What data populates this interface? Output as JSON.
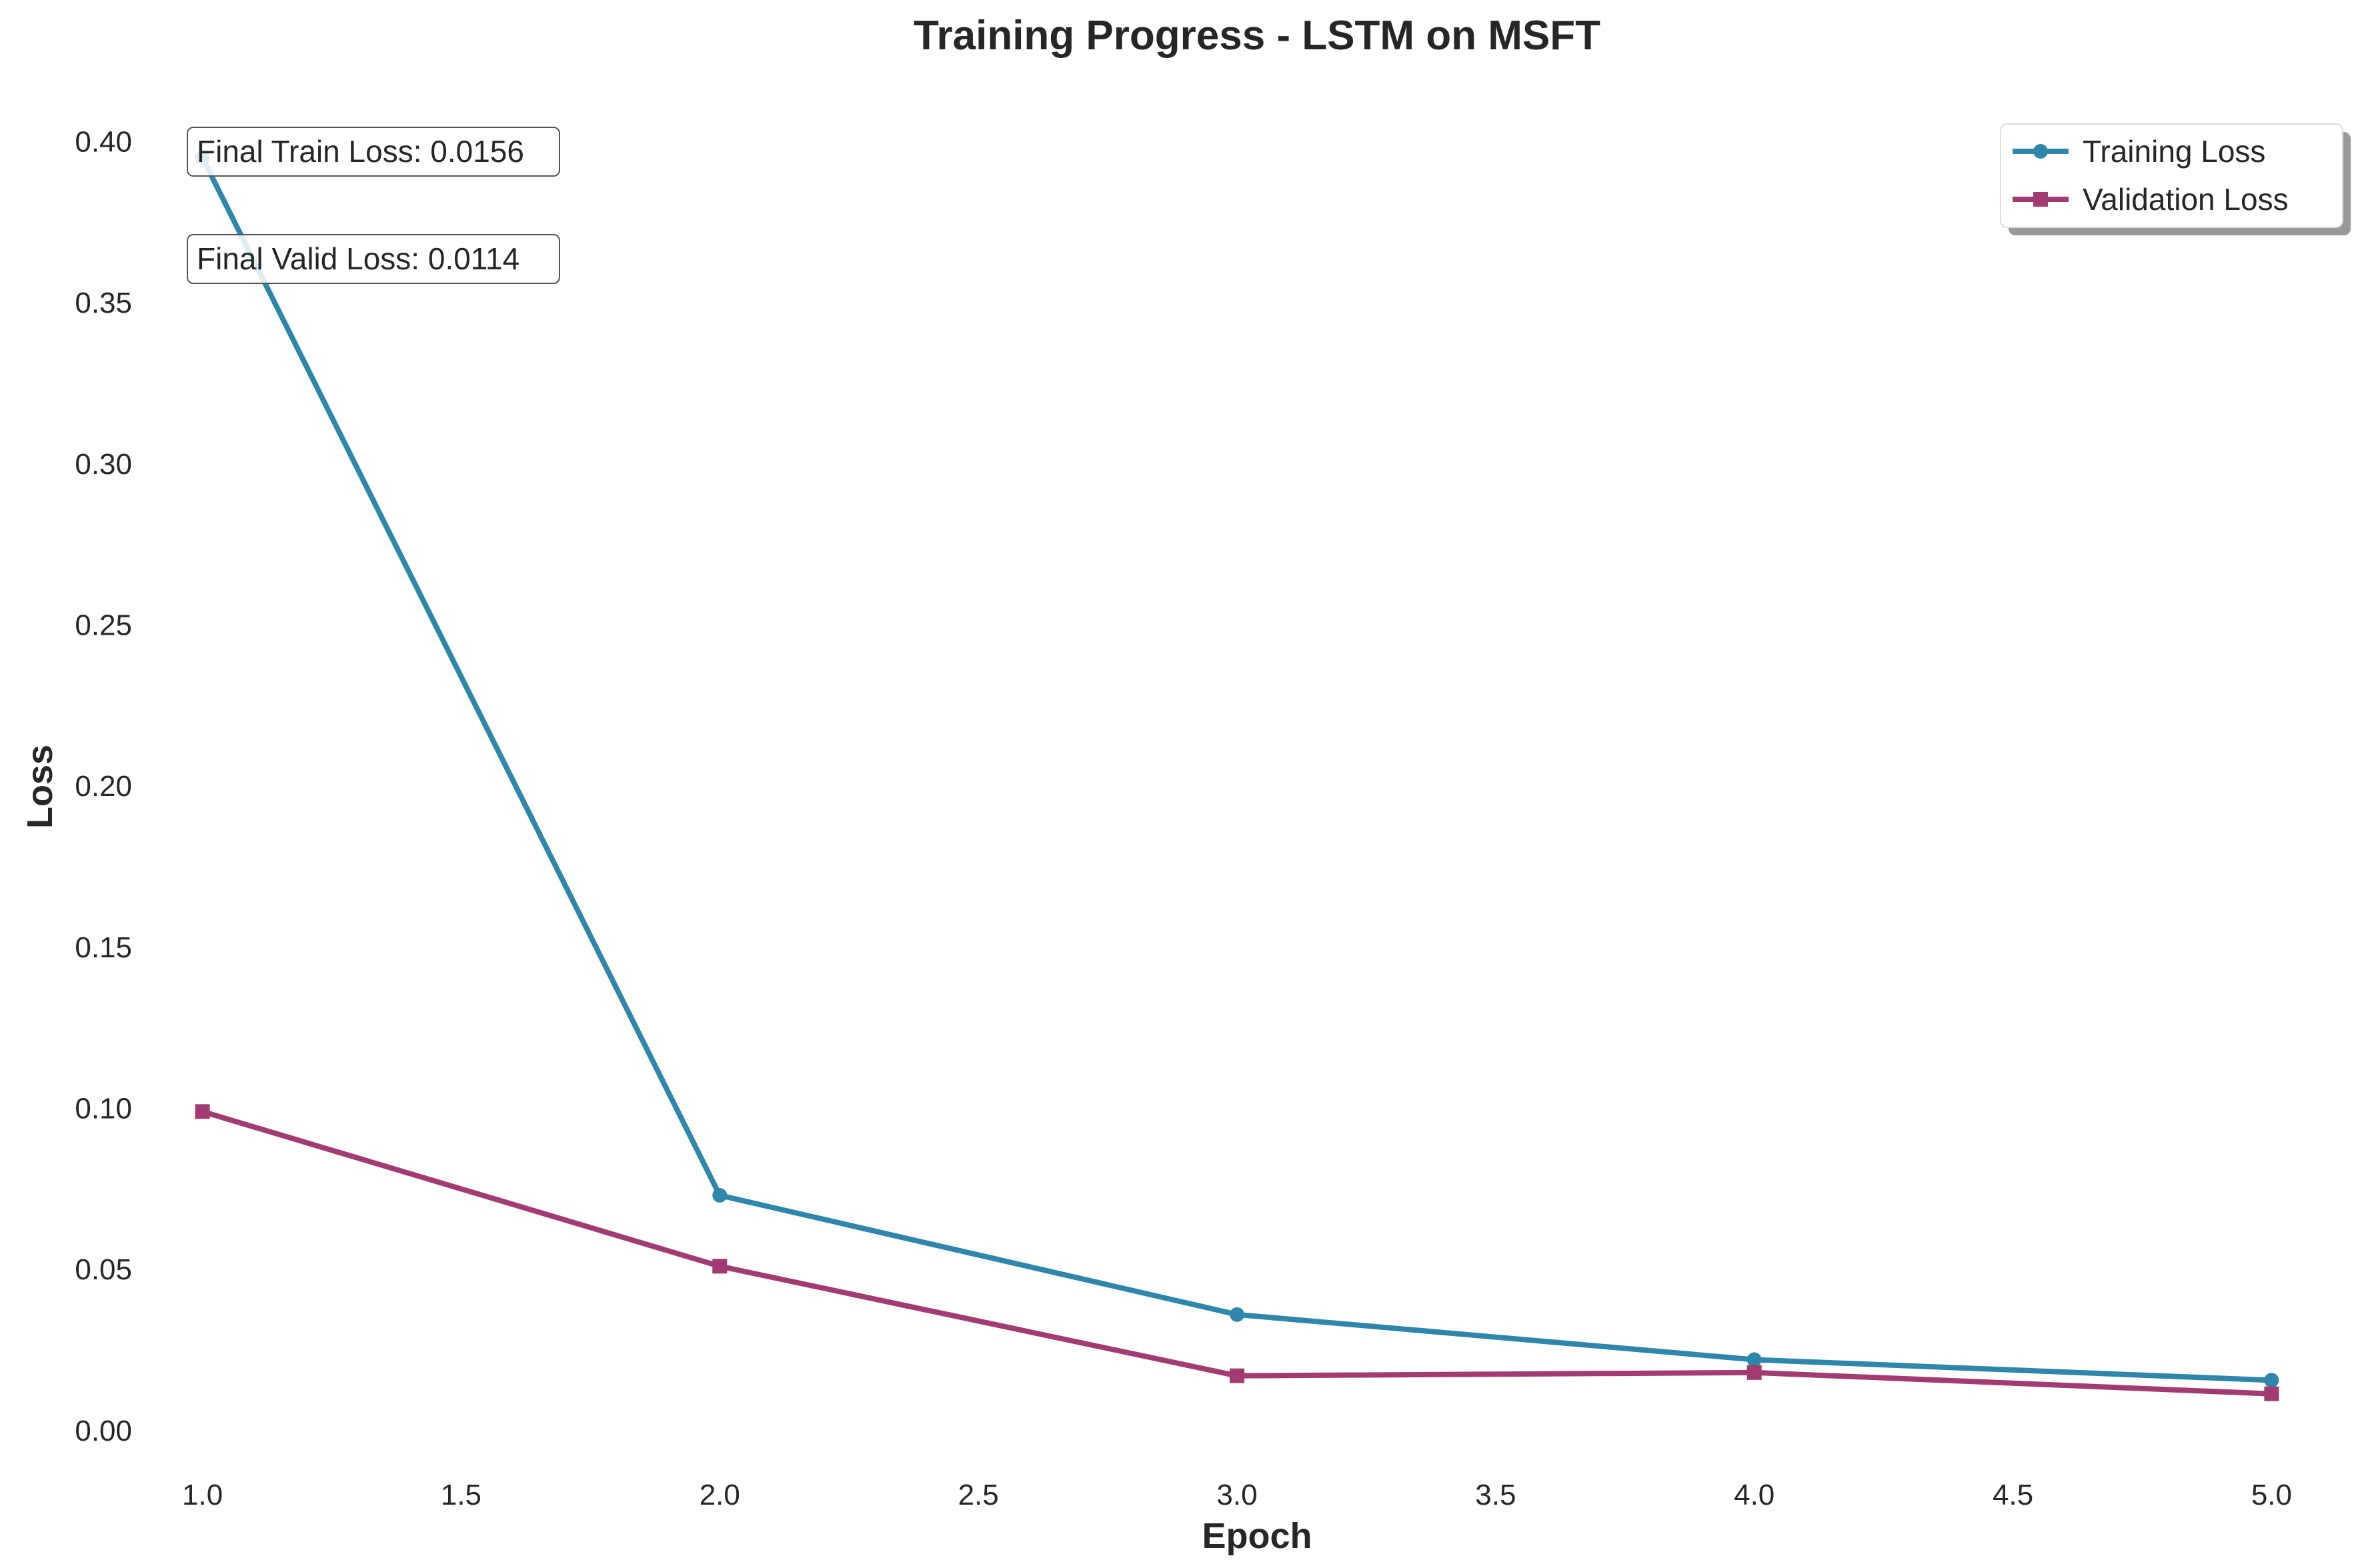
{
  "chart_data": {
    "type": "line",
    "title": "Training Progress - LSTM on MSFT",
    "xlabel": "Epoch",
    "ylabel": "Loss",
    "xlim": [
      0.86,
      5.14
    ],
    "ylim": [
      -0.005,
      0.415
    ],
    "xticks": [
      1.0,
      1.5,
      2.0,
      2.5,
      3.0,
      3.5,
      4.0,
      4.5,
      5.0
    ],
    "xtick_labels": [
      "1.0",
      "1.5",
      "2.0",
      "2.5",
      "3.0",
      "3.5",
      "4.0",
      "4.5",
      "5.0"
    ],
    "yticks": [
      0.0,
      0.05,
      0.1,
      0.15,
      0.2,
      0.25,
      0.3,
      0.35,
      0.4
    ],
    "ytick_labels": [
      "0.00",
      "0.05",
      "0.10",
      "0.15",
      "0.20",
      "0.25",
      "0.30",
      "0.35",
      "0.40"
    ],
    "grid": false,
    "legend_position": "top-right",
    "series": [
      {
        "name": "Training Loss",
        "color": "#2e86ab",
        "marker": "circle",
        "x": [
          1,
          2,
          3,
          4,
          5
        ],
        "y": [
          0.395,
          0.073,
          0.036,
          0.022,
          0.0156
        ]
      },
      {
        "name": "Validation Loss",
        "color": "#a23b72",
        "marker": "square",
        "x": [
          1,
          2,
          3,
          4,
          5
        ],
        "y": [
          0.099,
          0.051,
          0.017,
          0.018,
          0.0114
        ]
      }
    ],
    "annotations": [
      "Final Train Loss: 0.0156",
      "Final Valid Loss: 0.0114"
    ]
  }
}
